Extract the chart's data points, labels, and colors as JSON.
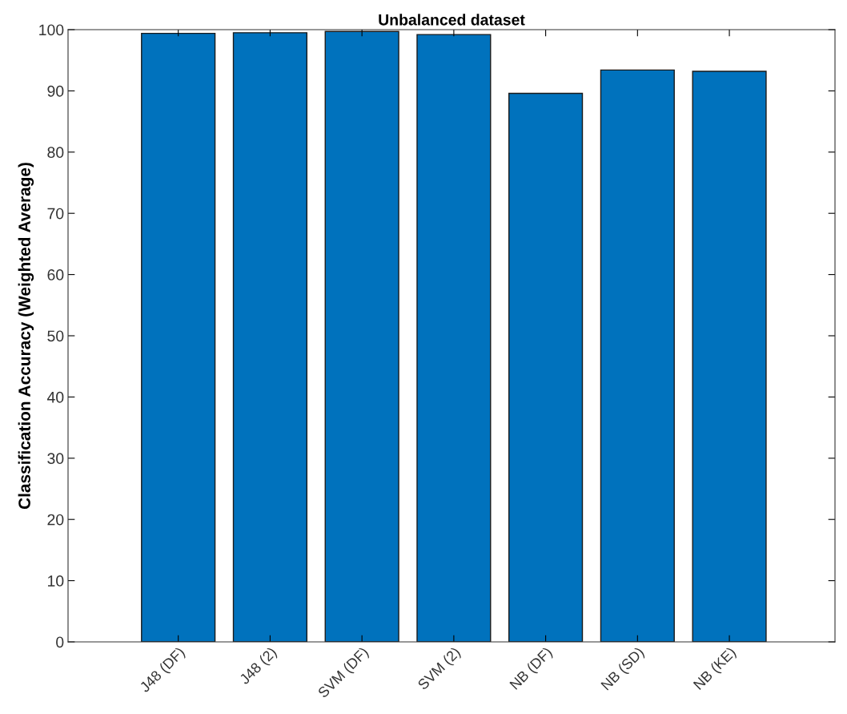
{
  "chart_data": {
    "type": "bar",
    "title": "Unbalanced dataset",
    "ylabel": "Classification Accuracy (Weighted Average)",
    "categories": [
      "J48 (DF)",
      "J48 (2)",
      "SVM (DF)",
      "SVM (2)",
      "NB (DF)",
      "NB (SD)",
      "NB (KE)"
    ],
    "values": [
      99.4,
      99.5,
      99.7,
      99.2,
      89.6,
      93.4,
      93.2
    ],
    "color": "#0072bd",
    "ylim": [
      0,
      100
    ],
    "yticks": [
      0,
      10,
      20,
      30,
      40,
      50,
      60,
      70,
      80,
      90,
      100
    ],
    "grid": false
  }
}
